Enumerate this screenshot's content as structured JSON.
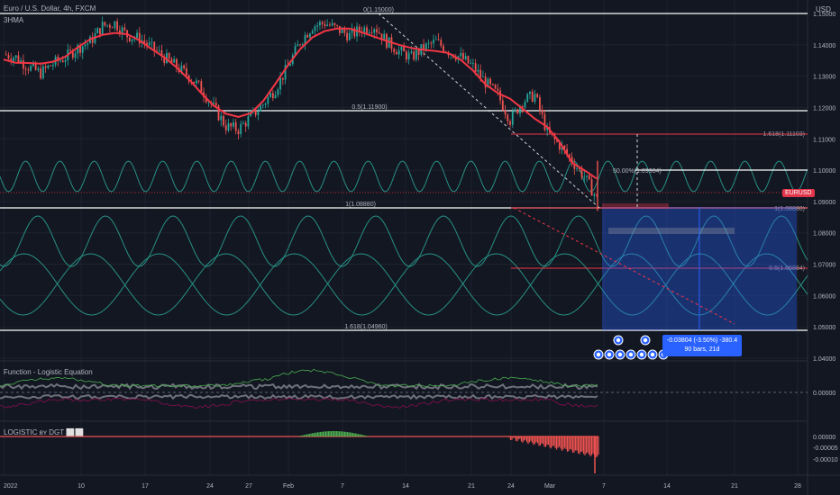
{
  "header": {
    "symbol": "Euro / U.S. Dollar, 4h, FXCM",
    "study_main": "3HMA",
    "study_logistic_fn": "Function - Logistic Equation",
    "study_logistic": "LOGISTIC ʙʏ DGT ⬜⬜",
    "currency_unit": "USD"
  },
  "price_axis": {
    "ticks": [
      "1.15000",
      "1.14000",
      "1.13000",
      "1.12000",
      "1.11000",
      "1.10000",
      "1.09000",
      "1.08000",
      "1.07000",
      "1.06000",
      "1.05000",
      "1.04000"
    ],
    "current_tag": "EURUSD",
    "ind1_ticks": [
      "0.00000"
    ],
    "ind2_ticks": [
      "0.00000",
      "-0.00005",
      "-0.00010"
    ]
  },
  "time_axis": {
    "ticks": [
      "2022",
      "10",
      "17",
      "24",
      "27",
      "Feb",
      "7",
      "14",
      "21",
      "24",
      "Mar",
      "7",
      "14",
      "21",
      "28"
    ]
  },
  "fib": {
    "level_0": "0(1.15000)",
    "level_05": "0.5(1.11900)",
    "level_1": "1(1.08880)",
    "level_1618": "1.618(1.04960)",
    "mid": "50.00%(1.09984)",
    "red_top": "1.618(1.11103)",
    "red_mid": "1(1.08880)",
    "red_low": "0.5(1.06884)"
  },
  "measure": {
    "line1": "-0.03804 (-3.50%) -380.4",
    "line2": "90 bars, 21d"
  },
  "colors": {
    "bg": "#131722",
    "hma": "#f23645",
    "up": "#26a69a",
    "wave": "#2a9d8f",
    "measure": "#2962ff"
  },
  "chart_data": {
    "type": "candlestick",
    "title": "",
    "ylim": [
      1.035,
      1.155
    ],
    "x_ticks": [
      "2022",
      "10",
      "17",
      "24",
      "27",
      "Feb",
      "7",
      "14",
      "21",
      "24",
      "Mar",
      "7",
      "14",
      "21",
      "28"
    ],
    "price_path_close": [
      1.137,
      1.136,
      1.133,
      1.131,
      1.134,
      1.136,
      1.139,
      1.141,
      1.146,
      1.147,
      1.143,
      1.142,
      1.139,
      1.136,
      1.133,
      1.13,
      1.126,
      1.12,
      1.114,
      1.113,
      1.117,
      1.121,
      1.126,
      1.133,
      1.141,
      1.146,
      1.147,
      1.145,
      1.143,
      1.145,
      1.146,
      1.141,
      1.138,
      1.136,
      1.139,
      1.141,
      1.138,
      1.136,
      1.133,
      1.128,
      1.124,
      1.116,
      1.122,
      1.124,
      1.112,
      1.108,
      1.103,
      1.098,
      1.091
    ],
    "series": [
      {
        "name": "3HMA",
        "type": "line"
      }
    ]
  }
}
